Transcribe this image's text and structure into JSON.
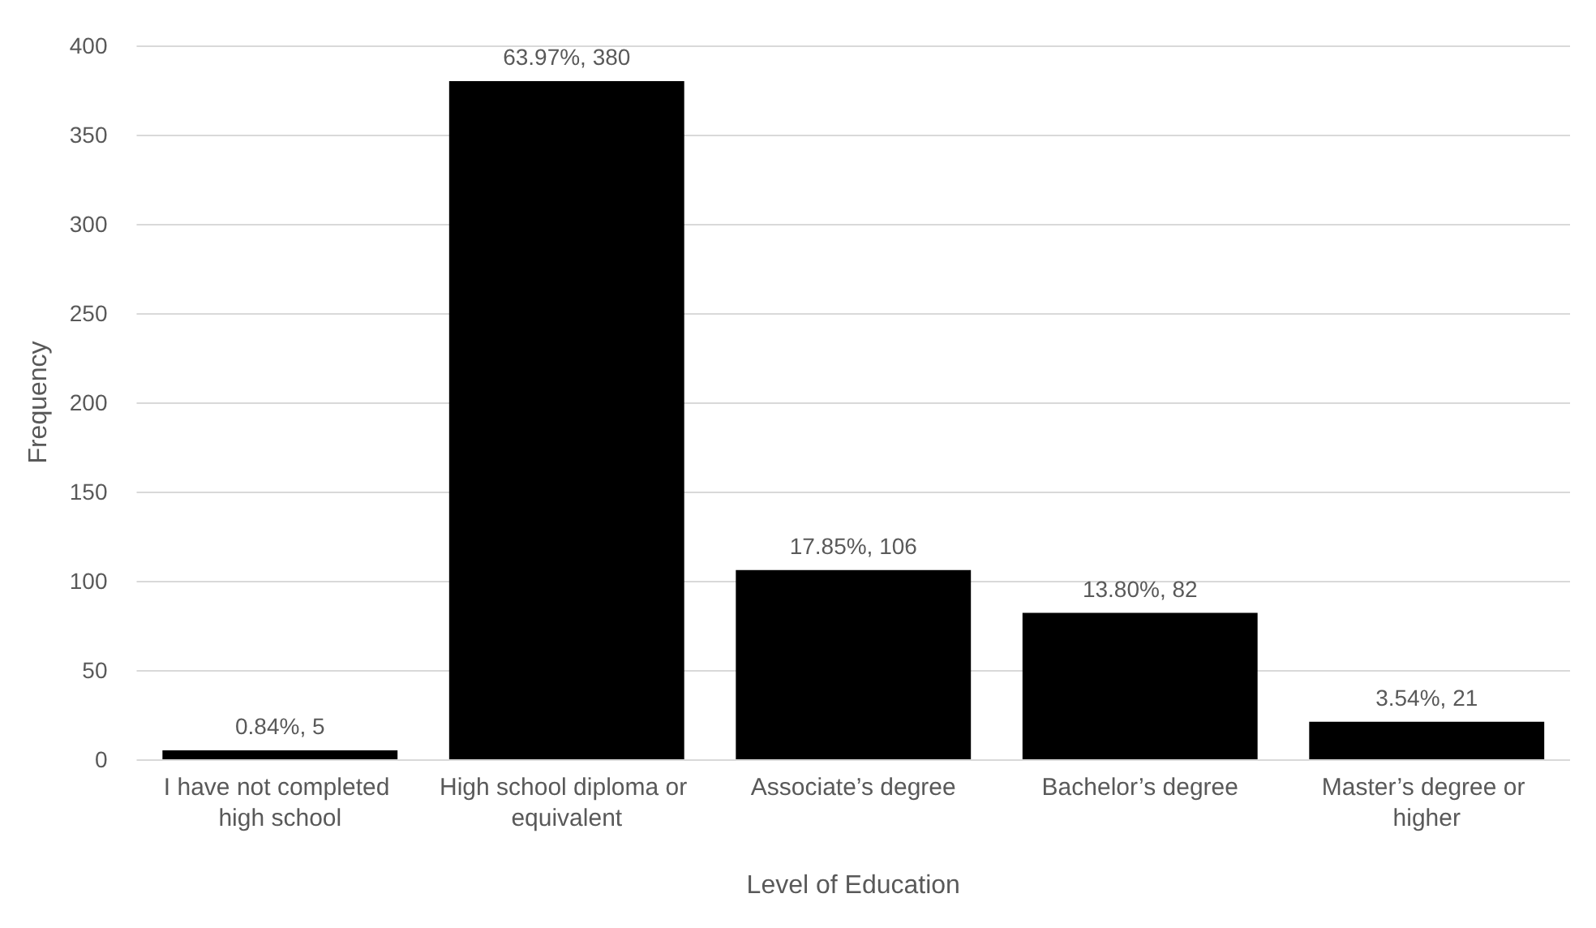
{
  "chart_data": {
    "type": "bar",
    "xlabel": "Level of Education",
    "ylabel": "Frequency",
    "categories": [
      "I have not completed high school",
      "High school diploma or equivalent",
      "Associate’s degree",
      "Bachelor’s degree",
      "Master’s degree or higher"
    ],
    "values": [
      5,
      380,
      106,
      82,
      21
    ],
    "value_labels": [
      "0.84%, 5",
      "63.97%, 380",
      "17.85%, 106",
      "13.80%, 82",
      "3.54%, 21"
    ],
    "color": "#000000",
    "ylim": [
      0,
      400
    ],
    "yticks": [
      0,
      50,
      100,
      150,
      200,
      250,
      300,
      350,
      400
    ],
    "grid": "y"
  }
}
